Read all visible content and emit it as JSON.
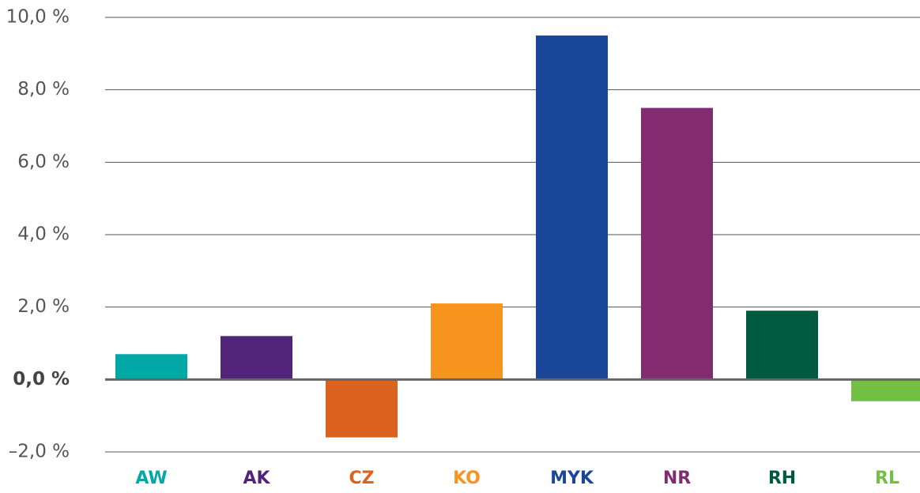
{
  "chart_data": {
    "type": "bar",
    "categories": [
      "AW",
      "AK",
      "CZ",
      "KO",
      "MYK",
      "NR",
      "RH",
      "RL"
    ],
    "values": [
      0.7,
      1.2,
      -1.6,
      2.1,
      9.5,
      7.5,
      1.9,
      -0.6
    ],
    "colors": [
      "#00a9a5",
      "#512479",
      "#dc631f",
      "#f7941d",
      "#1a4799",
      "#822b71",
      "#005a3f",
      "#72bf44"
    ],
    "ylim": [
      -2,
      10
    ],
    "yticks": [
      {
        "value": -2,
        "label": "–2,0 %"
      },
      {
        "value": 0,
        "label": "0,0 %"
      },
      {
        "value": 2,
        "label": "2,0 %"
      },
      {
        "value": 4,
        "label": "4,0 %"
      },
      {
        "value": 6,
        "label": "6,0 %"
      },
      {
        "value": 8,
        "label": "8,0 %"
      },
      {
        "value": 10,
        "label": "10,0 %"
      }
    ],
    "grid": true
  }
}
